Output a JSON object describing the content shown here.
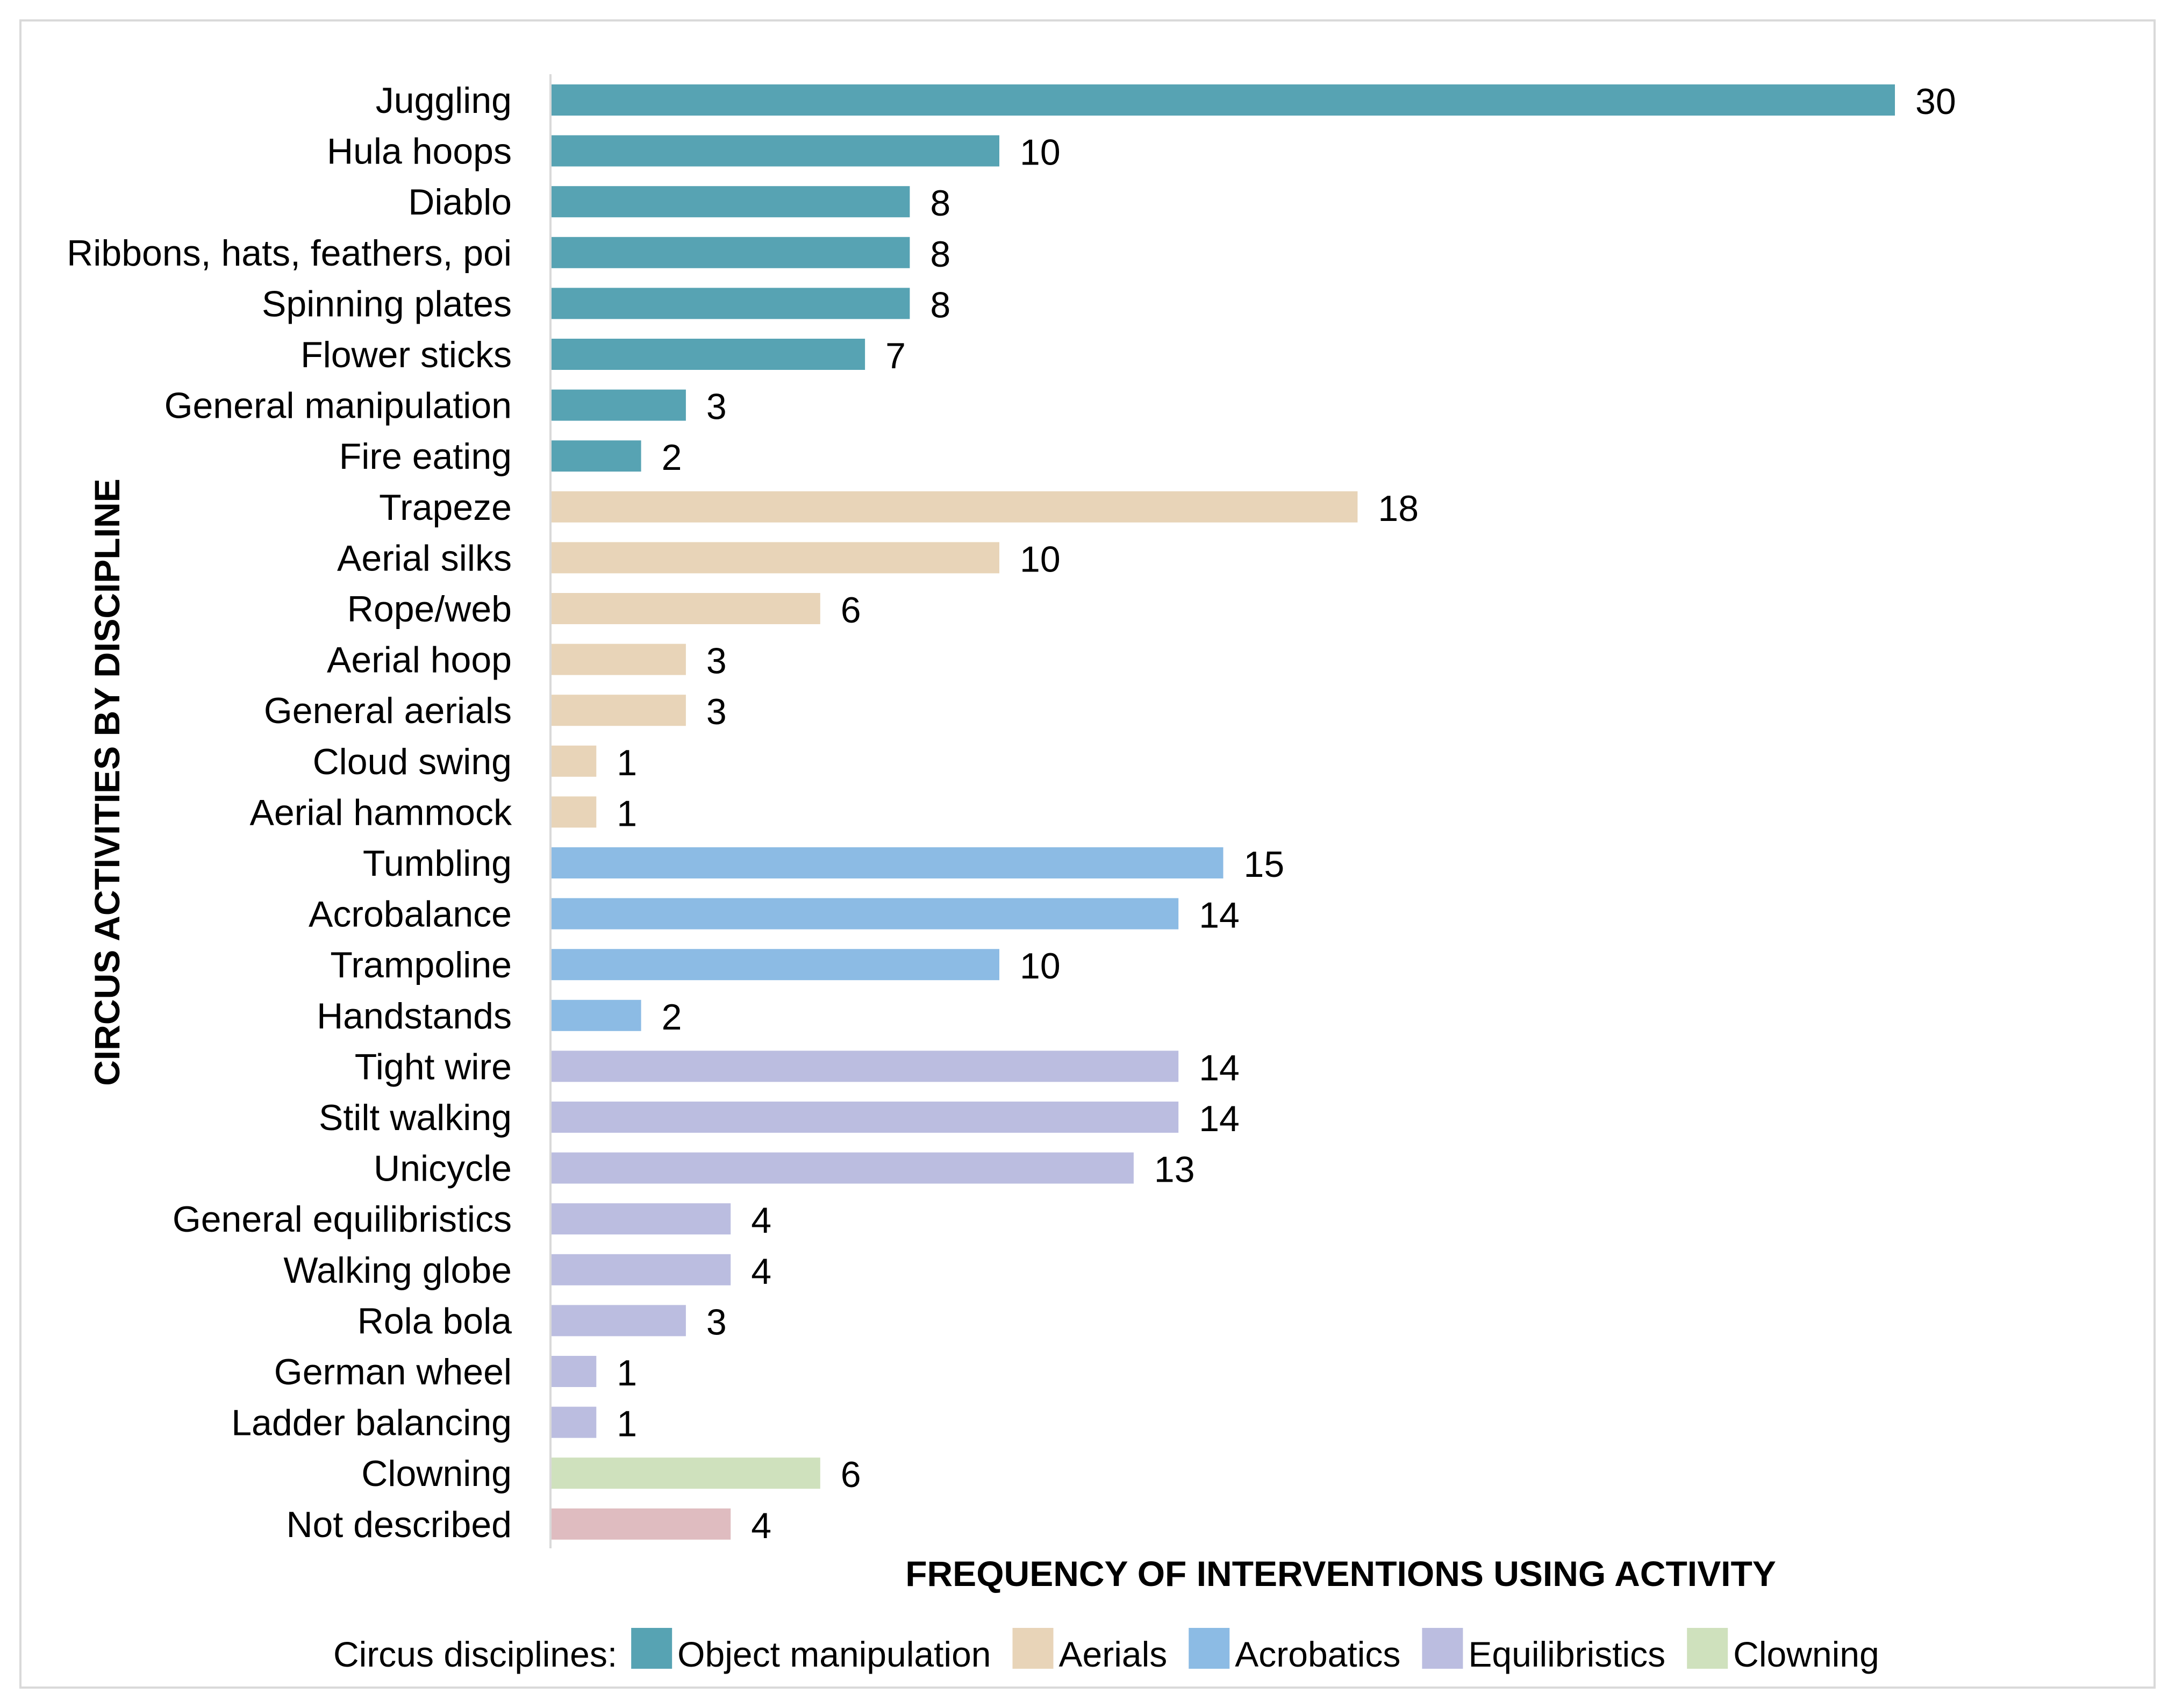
{
  "chart_data": {
    "type": "bar",
    "orientation": "horizontal",
    "categories": [
      "Juggling",
      "Hula hoops",
      "Diablo",
      "Ribbons, hats, feathers, poi",
      "Spinning plates",
      "Flower sticks",
      "General manipulation",
      "Fire eating",
      "Trapeze",
      "Aerial silks",
      "Rope/web",
      "Aerial hoop",
      "General aerials",
      "Cloud swing",
      "Aerial hammock",
      "Tumbling",
      "Acrobalance",
      "Trampoline",
      "Handstands",
      "Tight wire",
      "Stilt walking",
      "Unicycle",
      "General equilibristics",
      "Walking globe",
      "Rola bola",
      "German wheel",
      "Ladder balancing",
      "Clowning",
      "Not described"
    ],
    "values": [
      30,
      10,
      8,
      8,
      8,
      7,
      3,
      2,
      18,
      10,
      6,
      3,
      3,
      1,
      1,
      15,
      14,
      10,
      2,
      14,
      14,
      13,
      4,
      4,
      3,
      1,
      1,
      6,
      4
    ],
    "groups": [
      "object_manipulation",
      "object_manipulation",
      "object_manipulation",
      "object_manipulation",
      "object_manipulation",
      "object_manipulation",
      "object_manipulation",
      "object_manipulation",
      "aerials",
      "aerials",
      "aerials",
      "aerials",
      "aerials",
      "aerials",
      "aerials",
      "acrobatics",
      "acrobatics",
      "acrobatics",
      "acrobatics",
      "equilibristics",
      "equilibristics",
      "equilibristics",
      "equilibristics",
      "equilibristics",
      "equilibristics",
      "equilibristics",
      "equilibristics",
      "clowning",
      "not_described"
    ],
    "group_colors": {
      "object_manipulation": "#57a3b3",
      "aerials": "#e8d4b8",
      "acrobatics": "#8cbbe4",
      "equilibristics": "#bbbde0",
      "clowning": "#cfe1bd",
      "not_described": "#dfbcc0"
    },
    "xlabel": "FREQUENCY OF INTERVENTIONS USING ACTIVITY",
    "ylabel": "CIRCUS ACTIVITIES BY DISCIPLINE",
    "xlim": [
      0,
      30
    ],
    "grid": false,
    "legend": {
      "title": "Circus disciplines:",
      "placement": "bottom",
      "entries": [
        {
          "label": "Object manipulation",
          "group": "object_manipulation"
        },
        {
          "label": "Aerials",
          "group": "aerials"
        },
        {
          "label": "Acrobatics",
          "group": "acrobatics"
        },
        {
          "label": "Equilibristics",
          "group": "equilibristics"
        },
        {
          "label": "Clowning",
          "group": "clowning"
        }
      ]
    }
  }
}
